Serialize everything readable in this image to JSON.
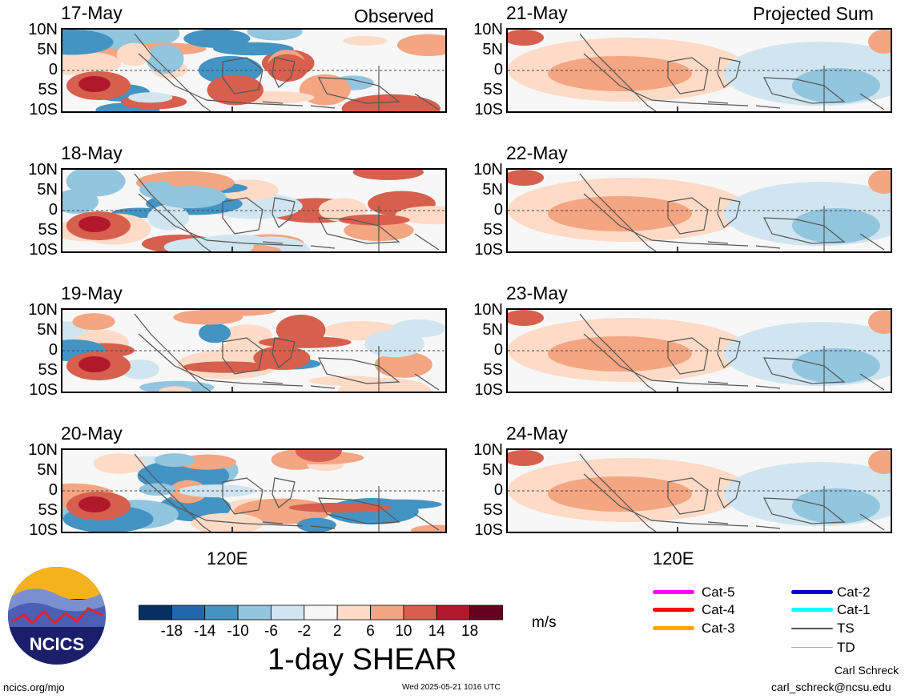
{
  "headers": {
    "observed": "Observed",
    "projected": "Projected Sum"
  },
  "lat_labels": [
    "10N",
    "5N",
    "0",
    "5S",
    "10S"
  ],
  "lon_label": "120E",
  "panels": [
    {
      "date": "17-May",
      "kind": "observed"
    },
    {
      "date": "18-May",
      "kind": "observed"
    },
    {
      "date": "19-May",
      "kind": "observed"
    },
    {
      "date": "20-May",
      "kind": "observed"
    },
    {
      "date": "21-May",
      "kind": "projected"
    },
    {
      "date": "22-May",
      "kind": "projected"
    },
    {
      "date": "23-May",
      "kind": "projected"
    },
    {
      "date": "24-May",
      "kind": "projected"
    }
  ],
  "colorbar": {
    "ticks": [
      "-18",
      "-14",
      "-10",
      "-6",
      "-2",
      "2",
      "6",
      "10",
      "14",
      "18"
    ],
    "colors": [
      "#053061",
      "#2166ac",
      "#4393c3",
      "#92c5de",
      "#d1e5f0",
      "#f7f7f7",
      "#fddbc7",
      "#f4a582",
      "#d6604d",
      "#b2182b",
      "#67001f"
    ],
    "units": "m/s",
    "title": "1-day SHEAR"
  },
  "legend": [
    {
      "label": "Cat-5",
      "color": "#ff00ff"
    },
    {
      "label": "Cat-4",
      "color": "#ff0000"
    },
    {
      "label": "Cat-3",
      "color": "#ffa500"
    },
    {
      "label": "Cat-2",
      "color": "#0000cd"
    },
    {
      "label": "Cat-1",
      "color": "#00ffff"
    },
    {
      "label": "TS",
      "color": "#555555"
    },
    {
      "label": "TD",
      "color": "#aaaaaa"
    }
  ],
  "logo_text": "NCICS",
  "footer": {
    "left": "ncics.org/mjo",
    "center": "Wed 2025-05-21 1016 UTC",
    "author": "Carl Schreck",
    "email": "carl_schreck@ncsu.edu"
  }
}
